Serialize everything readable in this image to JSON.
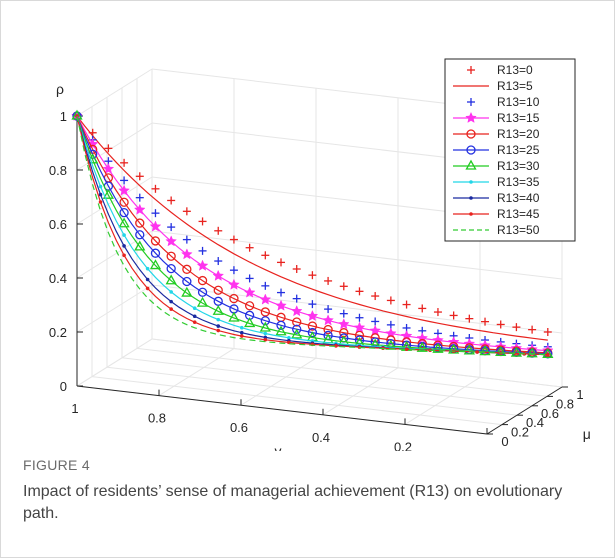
{
  "figure": {
    "label": "FIGURE 4",
    "caption": "Impact of residents’ sense of managerial achievement (R13) on evolutionary path."
  },
  "chart_data": {
    "type": "line",
    "projection": "3d",
    "xlabel": "v",
    "ylabel": "μ",
    "zlabel": "ρ",
    "xlim": [
      1,
      0
    ],
    "ylim": [
      0,
      1
    ],
    "zlim": [
      0,
      1
    ],
    "xticks": [
      "1",
      "0.8",
      "0.6",
      "0.4",
      "0.2",
      "0"
    ],
    "yticks": [
      "0",
      "0.2",
      "0.4",
      "0.6",
      "0.8",
      "1"
    ],
    "zticks": [
      "0",
      "0.2",
      "0.4",
      "0.6",
      "0.8",
      "1"
    ],
    "grid": true,
    "legend_position": "top-right",
    "series": [
      {
        "name": "R13=0",
        "color": "#e8231f",
        "line": "none",
        "marker": "plus",
        "k": 0.95
      },
      {
        "name": "R13=5",
        "color": "#e8231f",
        "line": "solid",
        "marker": "none",
        "k": 0.78
      },
      {
        "name": "R13=10",
        "color": "#2330e0",
        "line": "none",
        "marker": "plus",
        "k": 0.62
      },
      {
        "name": "R13=15",
        "color": "#ff33ee",
        "line": "solid",
        "marker": "star",
        "k": 0.5
      },
      {
        "name": "R13=20",
        "color": "#e8231f",
        "line": "solid",
        "marker": "circle",
        "k": 0.4
      },
      {
        "name": "R13=25",
        "color": "#2330e0",
        "line": "solid",
        "marker": "circle",
        "k": 0.33
      },
      {
        "name": "R13=30",
        "color": "#22cc22",
        "line": "solid",
        "marker": "triangle",
        "k": 0.27
      },
      {
        "name": "R13=35",
        "color": "#22d6e8",
        "line": "solid",
        "marker": "dot",
        "k": 0.22
      },
      {
        "name": "R13=40",
        "color": "#1a2aa0",
        "line": "solid",
        "marker": "dot",
        "k": 0.18
      },
      {
        "name": "R13=45",
        "color": "#e8231f",
        "line": "solid",
        "marker": "dot",
        "k": 0.15
      },
      {
        "name": "R13=50",
        "color": "#33cc33",
        "line": "dashed",
        "marker": "none",
        "k": 0.12
      }
    ]
  }
}
